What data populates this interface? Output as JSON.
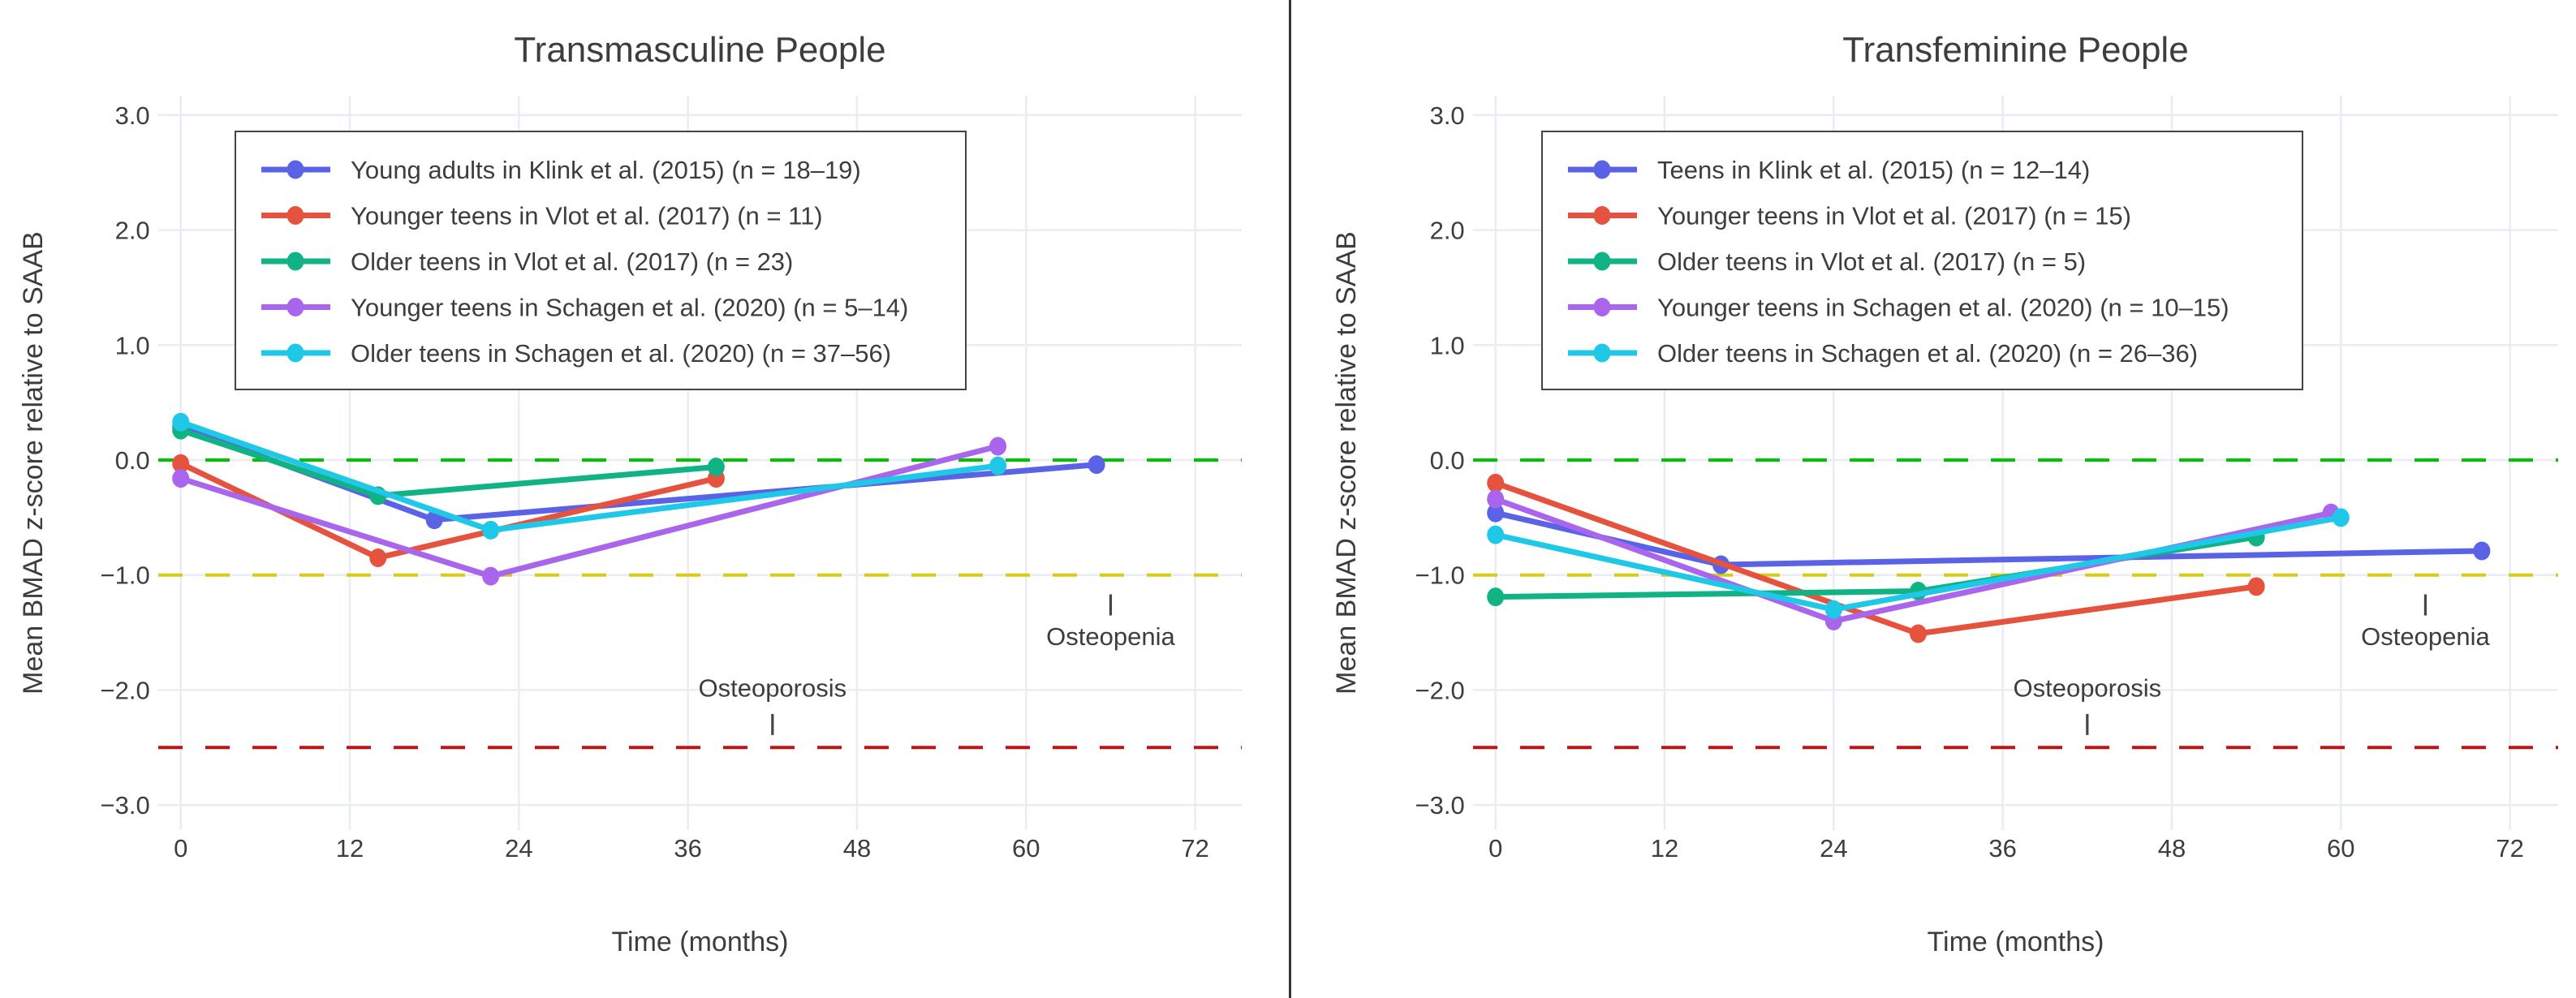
{
  "figure": {
    "background": "#ffffff",
    "divider_color": "#343434",
    "text_color": "#3d3d3d",
    "grid_color": "#e9edf3",
    "legend_border_color": "#444444"
  },
  "chart_data": [
    {
      "type": "line",
      "title": "Transmasculine People",
      "xlabel": "Time (months)",
      "ylabel": "Mean BMAD z-score relative to SAAB",
      "x_ticks": [
        0,
        12,
        24,
        36,
        48,
        60,
        72
      ],
      "y_tick_values": [
        3,
        2,
        1,
        0,
        -1,
        -2,
        -3
      ],
      "y_tick_labels": [
        "3.0",
        "2.0",
        "1.0",
        "0.0",
        "−1.0",
        "−2.0",
        "−3.0"
      ],
      "xlim": [
        -1.6,
        75.3
      ],
      "ylim": [
        -3.2,
        3.17
      ],
      "grid": true,
      "legend_position": "top-left",
      "series": [
        {
          "name": "Young adults in Klink et al. (2015) (n = 18–19)",
          "color": "#5a62e6",
          "x": [
            0,
            18,
            65
          ],
          "y": [
            0.29,
            -0.52,
            -0.04
          ]
        },
        {
          "name": "Younger teens in Vlot et al. (2017) (n = 11)",
          "color": "#e5523e",
          "x": [
            0,
            14,
            38
          ],
          "y": [
            -0.03,
            -0.85,
            -0.16
          ]
        },
        {
          "name": "Older teens in Vlot et al. (2017) (n = 23)",
          "color": "#11b385",
          "x": [
            0,
            14,
            38
          ],
          "y": [
            0.26,
            -0.31,
            -0.06
          ]
        },
        {
          "name": "Younger teens in Schagen et al. (2020) (n = 5–14)",
          "color": "#a965ec",
          "x": [
            0,
            22,
            58
          ],
          "y": [
            -0.16,
            -1.01,
            0.12
          ]
        },
        {
          "name": "Older teens in Schagen et al. (2020) (n = 37–56)",
          "color": "#20c8e8",
          "x": [
            0,
            22,
            58
          ],
          "y": [
            0.33,
            -0.61,
            -0.05
          ]
        }
      ],
      "reference_lines": [
        {
          "z": 0,
          "color": "#00c400",
          "style": "dashed"
        },
        {
          "z": -1,
          "color": "#d8cc12",
          "style": "dashed"
        },
        {
          "z": -2.5,
          "color": "#c41212",
          "style": "dashed"
        }
      ],
      "annotations": [
        {
          "text": "Osteoporosis",
          "x": 42,
          "text_z": -1.98,
          "tick_z": -2.3
        },
        {
          "text": "Osteopenia",
          "x": 66,
          "text_z": -1.53,
          "tick_z": -1.26
        }
      ]
    },
    {
      "type": "line",
      "title": "Transfeminine People",
      "xlabel": "Time (months)",
      "ylabel": "Mean BMAD z-score relative to SAAB",
      "x_ticks": [
        0,
        12,
        24,
        36,
        48,
        60,
        72
      ],
      "y_tick_values": [
        3,
        2,
        1,
        0,
        -1,
        -2,
        -3
      ],
      "y_tick_labels": [
        "3.0",
        "2.0",
        "1.0",
        "0.0",
        "−1.0",
        "−2.0",
        "−3.0"
      ],
      "xlim": [
        -1.6,
        75.4
      ],
      "ylim": [
        -3.2,
        3.17
      ],
      "grid": true,
      "legend_position": "top-left",
      "series": [
        {
          "name": "Teens in Klink et al. (2015) (n = 12–14)",
          "color": "#5a62e6",
          "x": [
            0,
            16,
            70
          ],
          "y": [
            -0.46,
            -0.91,
            -0.79
          ]
        },
        {
          "name": "Younger teens in Vlot et al. (2017) (n = 15)",
          "color": "#e5523e",
          "x": [
            0,
            30,
            54
          ],
          "y": [
            -0.2,
            -1.51,
            -1.1
          ]
        },
        {
          "name": "Older teens in Vlot et al. (2017) (n = 5)",
          "color": "#11b385",
          "x": [
            0,
            30,
            54
          ],
          "y": [
            -1.19,
            -1.14,
            -0.67
          ]
        },
        {
          "name": "Younger teens in Schagen et al. (2020) (n = 10–15)",
          "color": "#a965ec",
          "x": [
            0,
            24,
            59.3
          ],
          "y": [
            -0.34,
            -1.4,
            -0.46
          ]
        },
        {
          "name": "Older teens in Schagen et al. (2020) (n = 26–36)",
          "color": "#20c8e8",
          "x": [
            0,
            24,
            60
          ],
          "y": [
            -0.65,
            -1.3,
            -0.5
          ]
        }
      ],
      "reference_lines": [
        {
          "z": 0,
          "color": "#00c400",
          "style": "dashed"
        },
        {
          "z": -1,
          "color": "#d8cc12",
          "style": "dashed"
        },
        {
          "z": -2.5,
          "color": "#c41212",
          "style": "dashed"
        }
      ],
      "annotations": [
        {
          "text": "Osteoporosis",
          "x": 42,
          "text_z": -1.98,
          "tick_z": -2.3
        },
        {
          "text": "Osteopenia",
          "x": 66,
          "text_z": -1.53,
          "tick_z": -1.26
        }
      ]
    }
  ]
}
